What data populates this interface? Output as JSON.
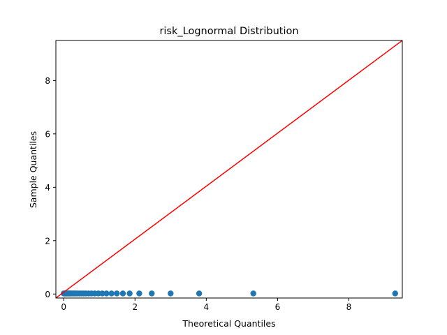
{
  "chart_data": {
    "type": "scatter",
    "title": "risk_Lognormal Distribution",
    "xlabel": "Theoretical Quantiles",
    "ylabel": "Sample Quantiles",
    "xlim": [
      -0.22,
      9.5
    ],
    "ylim": [
      -0.15,
      9.5
    ],
    "xticks": [
      0,
      2,
      4,
      6,
      8
    ],
    "yticks": [
      0,
      2,
      4,
      6,
      8
    ],
    "grid": false,
    "series": [
      {
        "kind": "points",
        "color": "#1f77b4",
        "x": [
          0.0,
          0.02,
          0.04,
          0.06,
          0.08,
          0.1,
          0.12,
          0.14,
          0.16,
          0.18,
          0.2,
          0.23,
          0.26,
          0.29,
          0.32,
          0.36,
          0.4,
          0.45,
          0.5,
          0.56,
          0.62,
          0.7,
          0.78,
          0.87,
          0.97,
          1.08,
          1.2,
          1.34,
          1.49,
          1.66,
          1.85,
          2.12,
          2.47,
          3.0,
          3.8,
          5.32,
          9.3
        ],
        "y": [
          0.02,
          0.02,
          0.02,
          0.02,
          0.02,
          0.02,
          0.02,
          0.02,
          0.02,
          0.02,
          0.02,
          0.02,
          0.02,
          0.02,
          0.02,
          0.02,
          0.02,
          0.02,
          0.02,
          0.02,
          0.02,
          0.02,
          0.02,
          0.02,
          0.02,
          0.02,
          0.02,
          0.02,
          0.02,
          0.02,
          0.02,
          0.02,
          0.02,
          0.02,
          0.02,
          0.02,
          0.02
        ]
      },
      {
        "kind": "reference-line",
        "color": "#ff0000",
        "x": [
          -0.22,
          9.5
        ],
        "y": [
          -0.15,
          9.5
        ]
      }
    ]
  }
}
